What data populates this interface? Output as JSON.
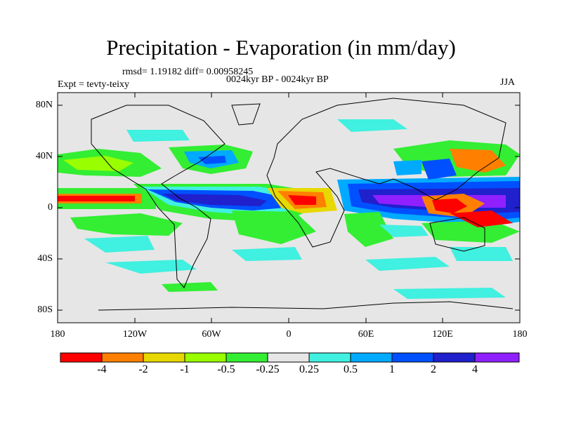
{
  "title": "Precipitation - Evaporation (in mm/day)",
  "stats_text": "rmsd= 1.19182 diff= 0.00958245",
  "experiment_text": "0024kyr BP - 0024kyr BP",
  "expt_label": "Expt = tevty-teixy",
  "season": "JJA",
  "map": {
    "lat_ticks": [
      "80N",
      "40N",
      "0",
      "40S",
      "80S"
    ],
    "lon_ticks": [
      "180",
      "120W",
      "60W",
      "0",
      "60E",
      "120E",
      "180"
    ],
    "background_color": "#e6e6e6"
  },
  "colorbar": {
    "labels": [
      "-4",
      "-2",
      "-1",
      "-0.5",
      "-0.25",
      "0.25",
      "0.5",
      "1",
      "2",
      "4"
    ],
    "colors": [
      "#ff0000",
      "#ff8000",
      "#e6d800",
      "#99ff00",
      "#33ee33",
      "#e6e6e6",
      "#40f0e0",
      "#00aaff",
      "#0050ff",
      "#2020cc",
      "#9020ff"
    ]
  }
}
